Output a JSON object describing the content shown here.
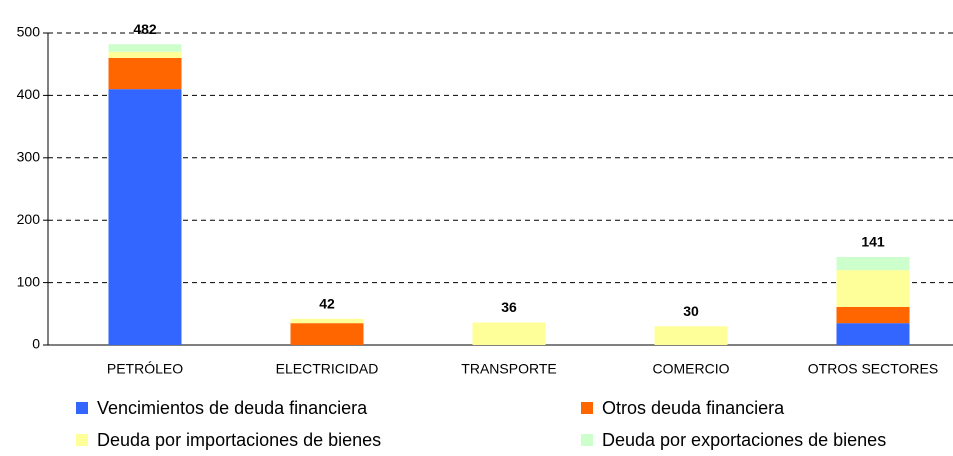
{
  "chart_data": {
    "type": "stacked_bar",
    "categories": [
      "PETRÓLEO",
      "ELECTRICIDAD",
      "TRANSPORTE",
      "COMERCIO",
      "OTROS SECTORES"
    ],
    "series": [
      {
        "name": "Vencimientos de deuda financiera",
        "color": "#3366ff",
        "values": [
          410,
          0,
          0,
          0,
          35
        ]
      },
      {
        "name": "Otros deuda financiera",
        "color": "#ff6600",
        "values": [
          50,
          35,
          0,
          0,
          26
        ]
      },
      {
        "name": "Deuda por importaciones de bienes",
        "color": "#ffff99",
        "values": [
          10,
          7,
          36,
          30,
          59
        ]
      },
      {
        "name": "Deuda por exportaciones de bienes",
        "color": "#ccffcc",
        "values": [
          12,
          0,
          0,
          0,
          21
        ]
      }
    ],
    "totals": [
      482,
      42,
      36,
      30,
      141
    ],
    "ylim": [
      0,
      500
    ],
    "yticks": [
      0,
      100,
      200,
      300,
      400,
      500
    ],
    "grid": true
  }
}
